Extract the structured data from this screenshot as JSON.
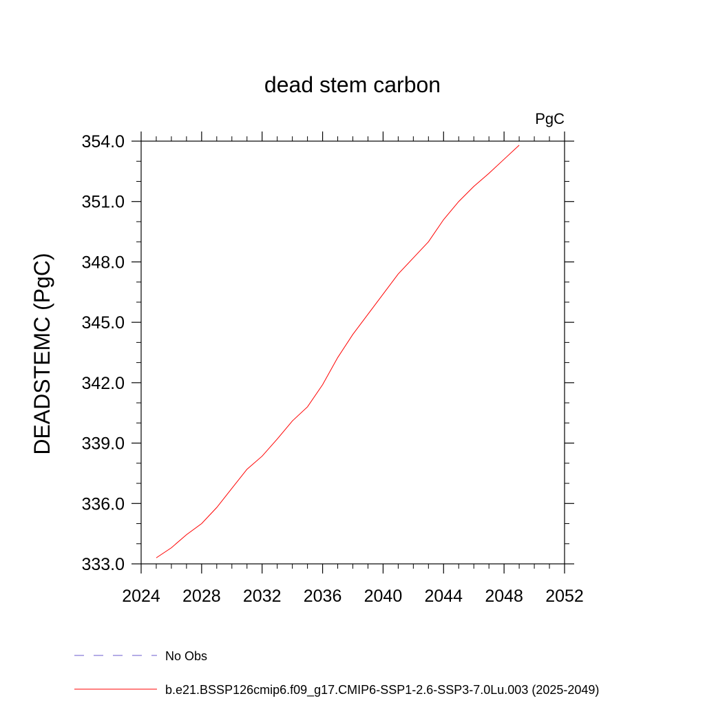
{
  "chart_data": {
    "type": "line",
    "title": "dead stem carbon",
    "units_label": "PgC",
    "ylabel": "DEADSTEMC  (PgC)",
    "xlabel": "",
    "xlim": [
      2024,
      2052
    ],
    "ylim": [
      333.0,
      354.0
    ],
    "x_ticks": [
      2024,
      2028,
      2032,
      2036,
      2040,
      2044,
      2048,
      2052
    ],
    "x_tick_labels": [
      "2024",
      "2028",
      "2032",
      "2036",
      "2040",
      "2044",
      "2048",
      "2052"
    ],
    "y_ticks": [
      333.0,
      336.0,
      339.0,
      342.0,
      345.0,
      348.0,
      351.0,
      354.0
    ],
    "y_tick_labels": [
      "333.0",
      "336.0",
      "339.0",
      "342.0",
      "345.0",
      "348.0",
      "351.0",
      "354.0"
    ],
    "grid": false,
    "legend_position": "bottom",
    "legend": [
      {
        "label": "No Obs",
        "color": "#6a5acd",
        "style": "dashed"
      },
      {
        "label": "b.e21.BSSP126cmip6.f09_g17.CMIP6-SSP1-2.6-SSP3-7.0Lu.003 (2025-2049)",
        "color": "#ff0000",
        "style": "solid"
      }
    ],
    "series": [
      {
        "name": "b.e21.BSSP126cmip6.f09_g17.CMIP6-SSP1-2.6-SSP3-7.0Lu.003 (2025-2049)",
        "color": "#ff0000",
        "x": [
          2025,
          2026,
          2027,
          2028,
          2029,
          2030,
          2031,
          2032,
          2033,
          2034,
          2035,
          2036,
          2037,
          2038,
          2039,
          2040,
          2041,
          2042,
          2043,
          2044,
          2045,
          2046,
          2047,
          2048,
          2049
        ],
        "values": [
          333.3,
          333.8,
          334.45,
          335.0,
          335.8,
          336.75,
          337.7,
          338.35,
          339.2,
          340.1,
          340.8,
          341.9,
          343.25,
          344.4,
          345.4,
          346.4,
          347.4,
          348.2,
          349.0,
          350.1,
          351.0,
          351.75,
          352.4,
          353.1,
          353.8
        ]
      }
    ]
  }
}
